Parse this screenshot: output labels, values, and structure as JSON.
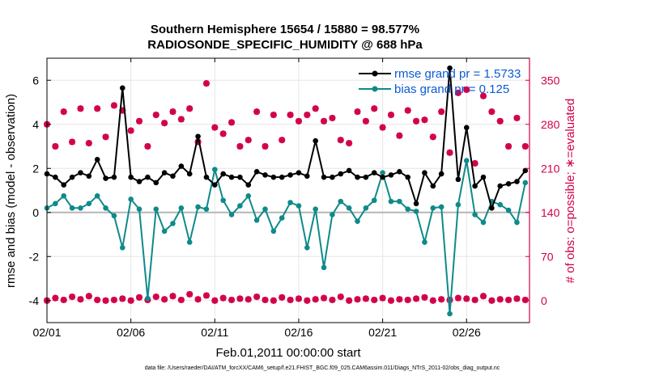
{
  "chart_data": {
    "type": "line",
    "title": "Southern Hemisphere 15654 / 15880 = 98.577%",
    "subtitle": "RADIOSONDE_SPECIFIC_HUMIDITY @ 688 hPa",
    "xlabel": "Feb.01,2011 00:00:00 start",
    "ylabel": "rmse and bias (model - observation)",
    "ylabel_right": "# of obs: o=possible; ∗=evaluated",
    "xlim": [
      0,
      28.75
    ],
    "ylim": [
      -5,
      7
    ],
    "ylim_right": [
      -35,
      385
    ],
    "x_ticks": [
      0,
      5,
      10,
      15,
      20,
      25
    ],
    "x_tick_labels": [
      "02/01",
      "02/06",
      "02/11",
      "02/16",
      "02/21",
      "02/26"
    ],
    "y_ticks": [
      -4,
      -2,
      0,
      2,
      4,
      6
    ],
    "y_tick_labels": [
      "-4",
      "-2",
      "0",
      "2",
      "4",
      "6"
    ],
    "y_right_ticks": [
      0,
      70,
      140,
      210,
      280,
      350
    ],
    "y_right_tick_labels": [
      "0",
      "70",
      "140",
      "210",
      "280",
      "350"
    ],
    "grid": true,
    "legend_position": "top-right",
    "series": [
      {
        "name": "rmse grand pr = 1.5733",
        "color": "#000000",
        "x": [
          0,
          0.5,
          1,
          1.5,
          2,
          2.5,
          3,
          3.5,
          4,
          4.5,
          5,
          5.5,
          6,
          6.5,
          7,
          7.5,
          8,
          8.5,
          9,
          9.5,
          10,
          10.5,
          11,
          11.5,
          12,
          12.5,
          13,
          13.5,
          14,
          14.5,
          15,
          15.5,
          16,
          16.5,
          17,
          17.5,
          18,
          18.5,
          19,
          19.5,
          20,
          20.5,
          21,
          21.5,
          22,
          22.5,
          23,
          23.5,
          24,
          24.5,
          25,
          25.5,
          26,
          26.5,
          27,
          27.5,
          28,
          28.5
        ],
        "values": [
          1.75,
          1.6,
          1.25,
          1.6,
          1.8,
          1.65,
          2.4,
          1.55,
          1.6,
          5.65,
          1.6,
          1.4,
          1.6,
          1.35,
          1.8,
          1.65,
          2.1,
          1.75,
          3.45,
          1.6,
          1.25,
          1.75,
          1.6,
          1.6,
          1.25,
          1.85,
          1.7,
          1.6,
          1.6,
          1.7,
          1.8,
          1.65,
          3.25,
          1.6,
          1.6,
          1.75,
          1.9,
          1.6,
          1.6,
          1.8,
          1.6,
          1.7,
          1.85,
          1.6,
          0.4,
          1.8,
          1.2,
          1.75,
          6.55,
          1.5,
          3.85,
          1.2,
          1.6,
          0.2,
          1.2,
          1.3,
          1.4,
          1.9
        ]
      },
      {
        "name": "bias grand pr = 0.125",
        "color": "#0f8a8a",
        "x": [
          0,
          0.5,
          1,
          1.5,
          2,
          2.5,
          3,
          3.5,
          4,
          4.5,
          5,
          5.5,
          6,
          6.5,
          7,
          7.5,
          8,
          8.5,
          9,
          9.5,
          10,
          10.5,
          11,
          11.5,
          12,
          12.5,
          13,
          13.5,
          14,
          14.5,
          15,
          15.5,
          16,
          16.5,
          17,
          17.5,
          18,
          18.5,
          19,
          19.5,
          20,
          20.5,
          21,
          21.5,
          22,
          22.5,
          23,
          23.5,
          24,
          24.5,
          25,
          25.5,
          26,
          26.5,
          27,
          27.5,
          28,
          28.5
        ],
        "values": [
          0.2,
          0.4,
          0.75,
          0.2,
          0.2,
          0.4,
          0.75,
          0.2,
          -0.15,
          -1.6,
          0.6,
          0.15,
          -3.9,
          0.15,
          -0.85,
          -0.5,
          0.2,
          -1.35,
          0.25,
          0.15,
          1.95,
          0.55,
          -0.1,
          0.3,
          0.75,
          -0.35,
          0.15,
          -0.85,
          -0.25,
          0.45,
          0.3,
          -1.6,
          0.15,
          -2.5,
          -0.1,
          0.5,
          0.2,
          -0.4,
          0.2,
          0.55,
          1.8,
          0.5,
          0.5,
          0.15,
          0.05,
          -1.35,
          0.2,
          0.25,
          -4.6,
          0.35,
          2.35,
          -0.1,
          -0.45,
          0.5,
          0.35,
          0.1,
          -0.45,
          1.35
        ]
      },
      {
        "name": "possible obs",
        "color": "#d2004b",
        "axis": "right",
        "x": [
          0,
          0.5,
          1,
          1.5,
          2,
          2.5,
          3,
          3.5,
          4,
          4.5,
          5,
          5.5,
          6,
          6.5,
          7,
          7.5,
          8,
          8.5,
          9,
          9.5,
          10,
          10.5,
          11,
          11.5,
          12,
          12.5,
          13,
          13.5,
          14,
          14.5,
          15,
          15.5,
          16,
          16.5,
          17,
          17.5,
          18,
          18.5,
          19,
          19.5,
          20,
          20.5,
          21,
          21.5,
          22,
          22.5,
          23,
          23.5,
          24,
          24.5,
          25,
          25.5,
          26,
          26.5,
          27,
          27.5,
          28,
          28.5
        ],
        "values": [
          280,
          245,
          300,
          252,
          305,
          250,
          305,
          260,
          310,
          302,
          270,
          285,
          245,
          295,
          282,
          300,
          288,
          305,
          252,
          345,
          275,
          265,
          283,
          245,
          255,
          300,
          245,
          295,
          255,
          295,
          285,
          295,
          305,
          285,
          290,
          255,
          250,
          300,
          285,
          305,
          275,
          295,
          262,
          302,
          285,
          287,
          260,
          300,
          235,
          330,
          335,
          218,
          325,
          300,
          285,
          245,
          290,
          245
        ]
      },
      {
        "name": "evaluated obs",
        "color": "#d2004b",
        "axis": "right",
        "x": [
          0,
          0.5,
          1,
          1.5,
          2,
          2.5,
          3,
          3.5,
          4,
          4.5,
          5,
          5.5,
          6,
          6.5,
          7,
          7.5,
          8,
          8.5,
          9,
          9.5,
          10,
          10.5,
          11,
          11.5,
          12,
          12.5,
          13,
          13.5,
          14,
          14.5,
          15,
          15.5,
          16,
          16.5,
          17,
          17.5,
          18,
          18.5,
          19,
          19.5,
          20,
          20.5,
          21,
          21.5,
          22,
          22.5,
          23,
          23.5,
          24,
          24.5,
          25,
          25.5,
          26,
          26.5,
          27,
          27.5,
          28,
          28.5
        ],
        "values": [
          0,
          4,
          1,
          6,
          2,
          7,
          1,
          0,
          1,
          3,
          0,
          5,
          1,
          6,
          2,
          7,
          1,
          10,
          2,
          8,
          0,
          4,
          1,
          3,
          2,
          6,
          1,
          0,
          5,
          1,
          3,
          0,
          2,
          4,
          1,
          6,
          0,
          2,
          3,
          1,
          4,
          0,
          2,
          1,
          3,
          5,
          0,
          2,
          1,
          4,
          3,
          1,
          7,
          0,
          2,
          1,
          3,
          1
        ]
      }
    ],
    "footnote": "data file: /Users/raeder/DAI/ATM_forcXX/CAM6_setup/f.e21.FHIST_BGC.f09_025.CAM6assim.011/Diags_NTrS_2011-02/obs_diag_output.nc"
  }
}
